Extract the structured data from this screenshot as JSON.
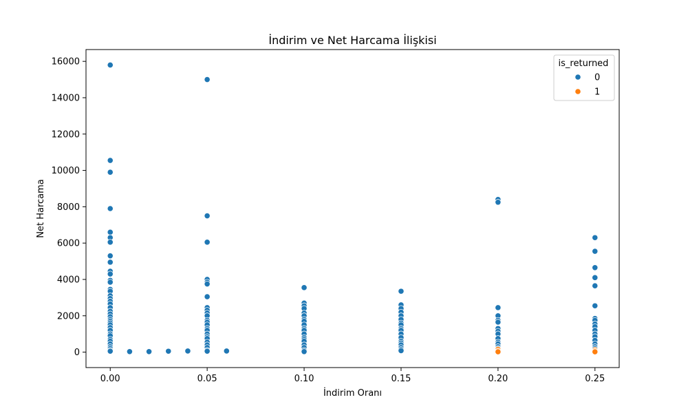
{
  "chart_data": {
    "type": "scatter",
    "title": "İndirim ve Net Harcama İlişkisi",
    "xlabel": "İndirim Oranı",
    "ylabel": "Net Harcama",
    "xlim": [
      -0.0125,
      0.2625
    ],
    "ylim": [
      -850,
      16650
    ],
    "xticks": [
      0.0,
      0.05,
      0.1,
      0.15,
      0.2,
      0.25
    ],
    "xtick_labels": [
      "0.00",
      "0.05",
      "0.10",
      "0.15",
      "0.20",
      "0.25"
    ],
    "yticks": [
      0,
      2000,
      4000,
      6000,
      8000,
      10000,
      12000,
      14000,
      16000
    ],
    "ytick_labels": [
      "0",
      "2000",
      "4000",
      "6000",
      "8000",
      "10000",
      "12000",
      "14000",
      "16000"
    ],
    "grid": false,
    "legend": {
      "title": "is_returned",
      "placement": "top-right"
    },
    "series": [
      {
        "name": "0",
        "color": "#1f77b4",
        "points": [
          [
            0.0,
            15800
          ],
          [
            0.0,
            10550
          ],
          [
            0.0,
            9900
          ],
          [
            0.0,
            7900
          ],
          [
            0.0,
            6600
          ],
          [
            0.0,
            6300
          ],
          [
            0.0,
            6050
          ],
          [
            0.0,
            5300
          ],
          [
            0.0,
            4950
          ],
          [
            0.0,
            4450
          ],
          [
            0.0,
            4300
          ],
          [
            0.0,
            3950
          ],
          [
            0.0,
            3850
          ],
          [
            0.0,
            3450
          ],
          [
            0.0,
            3350
          ],
          [
            0.0,
            3100
          ],
          [
            0.0,
            2950
          ],
          [
            0.0,
            2800
          ],
          [
            0.0,
            2650
          ],
          [
            0.0,
            2450
          ],
          [
            0.0,
            2250
          ],
          [
            0.0,
            2100
          ],
          [
            0.0,
            1950
          ],
          [
            0.0,
            1800
          ],
          [
            0.0,
            1700
          ],
          [
            0.0,
            1600
          ],
          [
            0.0,
            1500
          ],
          [
            0.0,
            1350
          ],
          [
            0.0,
            1200
          ],
          [
            0.0,
            1000
          ],
          [
            0.0,
            900
          ],
          [
            0.0,
            700
          ],
          [
            0.0,
            600
          ],
          [
            0.0,
            450
          ],
          [
            0.0,
            300
          ],
          [
            0.0,
            200
          ],
          [
            0.0,
            100
          ],
          [
            0.0,
            50
          ],
          [
            0.01,
            30
          ],
          [
            0.02,
            30
          ],
          [
            0.03,
            50
          ],
          [
            0.04,
            60
          ],
          [
            0.05,
            15000
          ],
          [
            0.05,
            7500
          ],
          [
            0.05,
            6050
          ],
          [
            0.05,
            4000
          ],
          [
            0.05,
            3850
          ],
          [
            0.05,
            3750
          ],
          [
            0.05,
            3050
          ],
          [
            0.05,
            2450
          ],
          [
            0.05,
            2300
          ],
          [
            0.05,
            2150
          ],
          [
            0.05,
            2000
          ],
          [
            0.05,
            1750
          ],
          [
            0.05,
            1650
          ],
          [
            0.05,
            1500
          ],
          [
            0.05,
            1300
          ],
          [
            0.05,
            1200
          ],
          [
            0.05,
            1000
          ],
          [
            0.05,
            850
          ],
          [
            0.05,
            750
          ],
          [
            0.05,
            550
          ],
          [
            0.05,
            400
          ],
          [
            0.05,
            250
          ],
          [
            0.05,
            100
          ],
          [
            0.05,
            50
          ],
          [
            0.06,
            60
          ],
          [
            0.1,
            3550
          ],
          [
            0.1,
            2700
          ],
          [
            0.1,
            2550
          ],
          [
            0.1,
            2400
          ],
          [
            0.1,
            2150
          ],
          [
            0.1,
            2000
          ],
          [
            0.1,
            1800
          ],
          [
            0.1,
            1700
          ],
          [
            0.1,
            1500
          ],
          [
            0.1,
            1300
          ],
          [
            0.1,
            1200
          ],
          [
            0.1,
            1000
          ],
          [
            0.1,
            800
          ],
          [
            0.1,
            700
          ],
          [
            0.1,
            600
          ],
          [
            0.1,
            400
          ],
          [
            0.1,
            250
          ],
          [
            0.1,
            100
          ],
          [
            0.1,
            30
          ],
          [
            0.15,
            3350
          ],
          [
            0.15,
            2600
          ],
          [
            0.15,
            2400
          ],
          [
            0.15,
            2200
          ],
          [
            0.15,
            2000
          ],
          [
            0.15,
            1800
          ],
          [
            0.15,
            1600
          ],
          [
            0.15,
            1500
          ],
          [
            0.15,
            1300
          ],
          [
            0.15,
            1200
          ],
          [
            0.15,
            1000
          ],
          [
            0.15,
            800
          ],
          [
            0.15,
            600
          ],
          [
            0.15,
            500
          ],
          [
            0.15,
            400
          ],
          [
            0.15,
            250
          ],
          [
            0.15,
            150
          ],
          [
            0.15,
            80
          ],
          [
            0.2,
            8400
          ],
          [
            0.2,
            8250
          ],
          [
            0.2,
            2450
          ],
          [
            0.2,
            2000
          ],
          [
            0.2,
            1750
          ],
          [
            0.2,
            1650
          ],
          [
            0.2,
            1300
          ],
          [
            0.2,
            1150
          ],
          [
            0.2,
            1000
          ],
          [
            0.2,
            750
          ],
          [
            0.2,
            550
          ],
          [
            0.2,
            450
          ],
          [
            0.2,
            300
          ],
          [
            0.2,
            200
          ],
          [
            0.25,
            6300
          ],
          [
            0.25,
            5550
          ],
          [
            0.25,
            4650
          ],
          [
            0.25,
            4100
          ],
          [
            0.25,
            3650
          ],
          [
            0.25,
            2550
          ],
          [
            0.25,
            1850
          ],
          [
            0.25,
            1750
          ],
          [
            0.25,
            1550
          ],
          [
            0.25,
            1400
          ],
          [
            0.25,
            1200
          ],
          [
            0.25,
            1000
          ],
          [
            0.25,
            850
          ],
          [
            0.25,
            650
          ],
          [
            0.25,
            450
          ],
          [
            0.25,
            300
          ],
          [
            0.25,
            200
          ]
        ]
      },
      {
        "name": "1",
        "color": "#ff7f0e",
        "points": [
          [
            0.2,
            150
          ],
          [
            0.2,
            60
          ],
          [
            0.2,
            20
          ],
          [
            0.25,
            120
          ],
          [
            0.25,
            50
          ],
          [
            0.25,
            20
          ]
        ]
      }
    ]
  }
}
